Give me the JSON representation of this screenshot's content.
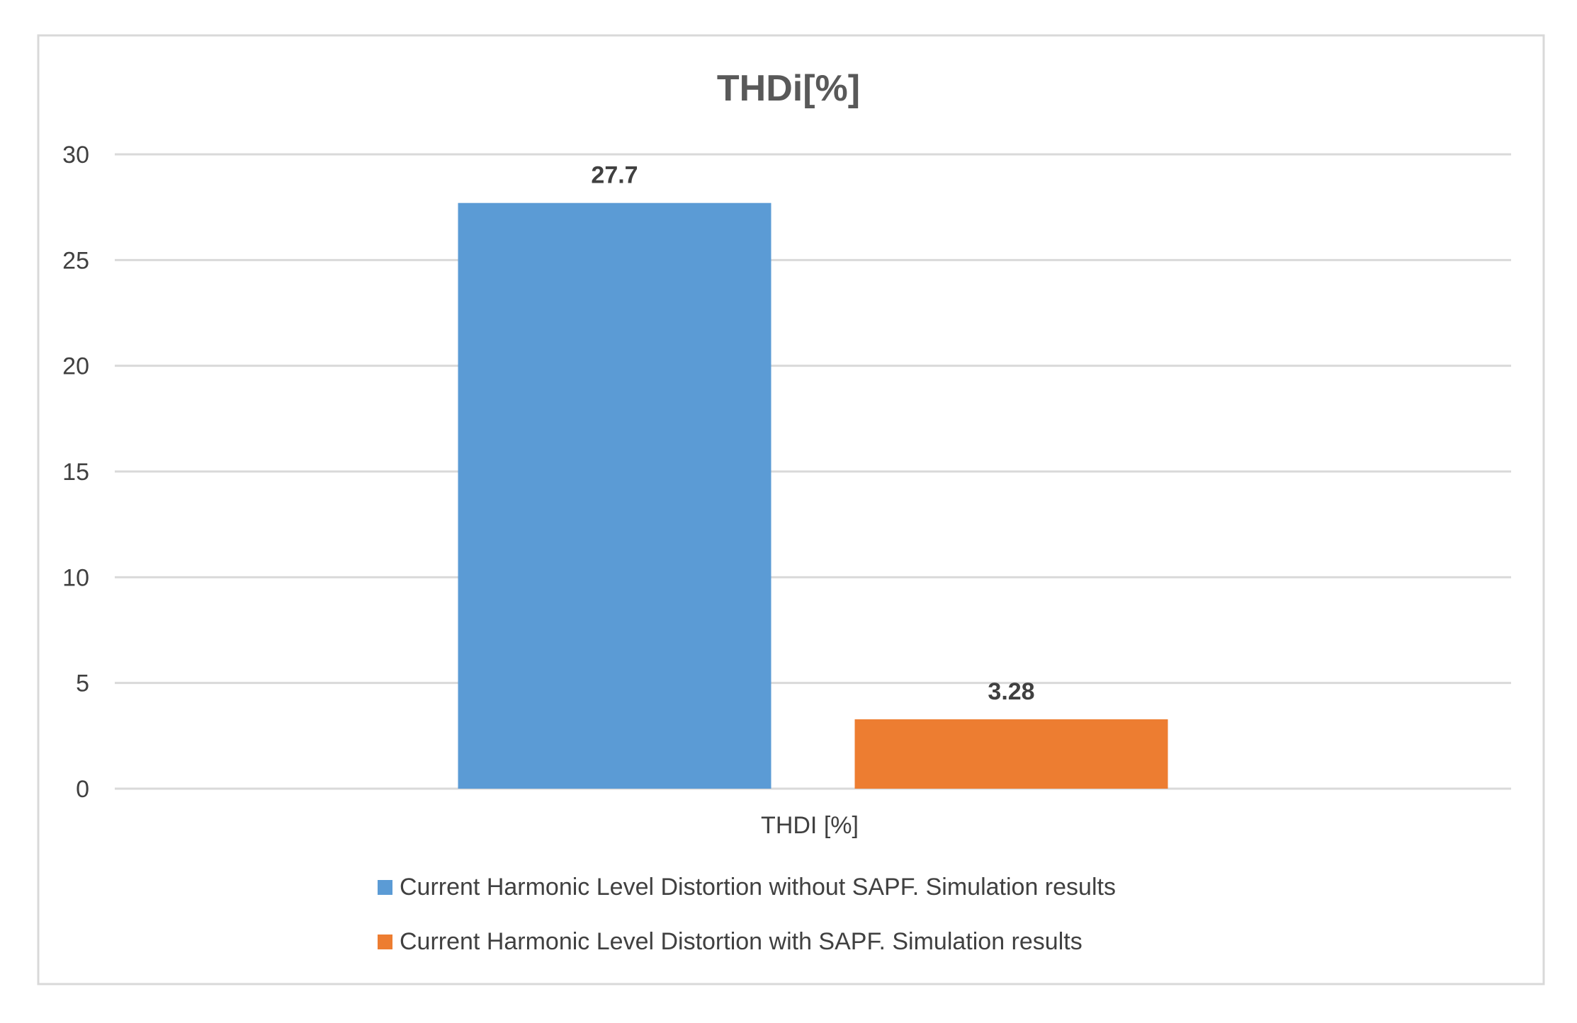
{
  "chart_data": {
    "type": "bar",
    "title": "THDi[%]",
    "categories": [
      "THDI [%]"
    ],
    "series": [
      {
        "name": "Current Harmonic Level Distortion without SAPF. Simulation results",
        "values": [
          27.7
        ],
        "data_labels": [
          "27.7"
        ],
        "color": "#5b9bd5"
      },
      {
        "name": "Current Harmonic Level Distortion with SAPF. Simulation results",
        "values": [
          3.28
        ],
        "data_labels": [
          "3.28"
        ],
        "color": "#ed7d31"
      }
    ],
    "ylim": [
      0,
      30
    ],
    "yticks": [
      0,
      5,
      10,
      15,
      20,
      25,
      30
    ],
    "ytick_labels": [
      "0",
      "5",
      "10",
      "15",
      "20",
      "25",
      "30"
    ],
    "xlabel": "",
    "ylabel": "",
    "grid": true,
    "legend_position": "bottom"
  },
  "colors": {
    "background": "#ffffff",
    "frame": "#d9d9d9",
    "gridline": "#d9d9d9",
    "text": "#404040",
    "title": "#595959"
  }
}
